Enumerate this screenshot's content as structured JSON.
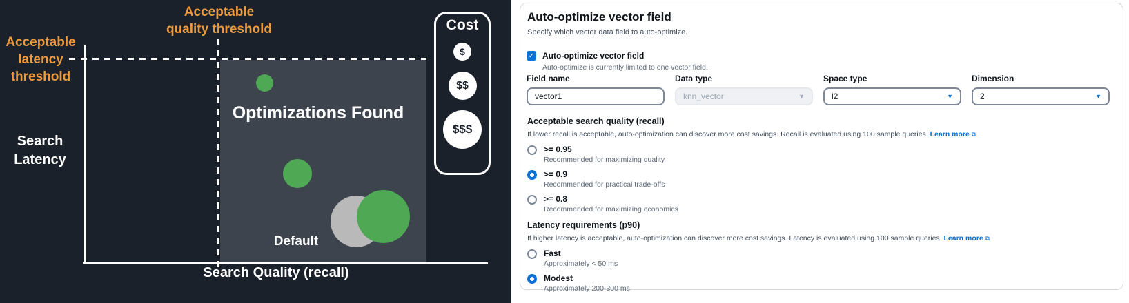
{
  "diagram": {
    "quality_threshold": {
      "line1": "Acceptable",
      "line2": "quality threshold"
    },
    "latency_threshold": {
      "line1": "Acceptable",
      "line2": "latency",
      "line3": "threshold"
    },
    "y_axis_label": {
      "line1": "Search",
      "line2": "Latency"
    },
    "x_axis_label": "Search Quality (recall)",
    "region_label": "Optimizations Found",
    "default_label": "Default",
    "cost_legend": {
      "title": "Cost",
      "items": [
        "$",
        "$$",
        "$$$"
      ]
    },
    "colors": {
      "background": "#1a212b",
      "region": "#3e444e",
      "accent_orange": "#ec9a3d",
      "bubble_green": "#4fa854",
      "bubble_gray": "#b9b9b9"
    }
  },
  "form": {
    "title": "Auto-optimize vector field",
    "subtitle": "Specify which vector data field to auto-optimize.",
    "accent_blue": "#0972d3",
    "enable_checkbox": {
      "label": "Auto-optimize vector field",
      "helper": "Auto-optimize is currently limited to one vector field.",
      "checked": true
    },
    "fields": {
      "field_name": {
        "label": "Field name",
        "value": "vector1"
      },
      "data_type": {
        "label": "Data type",
        "value": "knn_vector",
        "disabled": true
      },
      "space_type": {
        "label": "Space type",
        "value": "l2"
      },
      "dimension": {
        "label": "Dimension",
        "value": "2"
      }
    },
    "quality": {
      "heading": "Acceptable search quality (recall)",
      "description": "If lower recall is acceptable, auto-optimization can discover more cost savings. Recall is evaluated using 100 sample queries.",
      "learn_more": "Learn more",
      "options": [
        {
          "value": ">= 0.95",
          "description": "Recommended for maximizing quality",
          "selected": false
        },
        {
          "value": ">= 0.9",
          "description": "Recommended for practical trade-offs",
          "selected": true
        },
        {
          "value": ">= 0.8",
          "description": "Recommended for maximizing economics",
          "selected": false
        }
      ]
    },
    "latency": {
      "heading": "Latency requirements (p90)",
      "description": "If higher latency is acceptable, auto-optimization can discover more cost savings. Latency is evaluated using 100 sample queries.",
      "learn_more": "Learn more",
      "options": [
        {
          "value": "Fast",
          "description": "Approximately < 50 ms",
          "selected": false
        },
        {
          "value": "Modest",
          "description": "Approximately 200-300 ms",
          "selected": true
        }
      ]
    }
  },
  "icons": {
    "check": "✓",
    "caret_down": "▼",
    "external_link": "⧉"
  }
}
